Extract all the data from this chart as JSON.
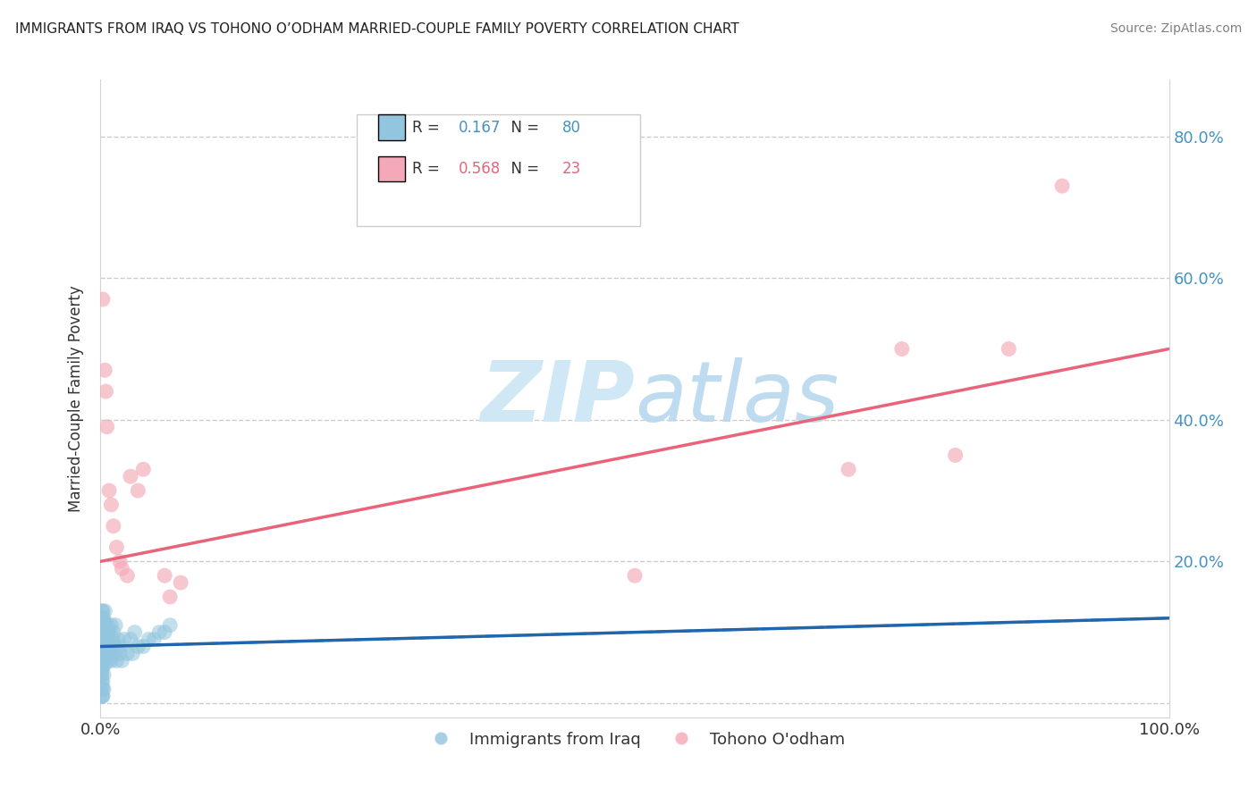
{
  "title": "IMMIGRANTS FROM IRAQ VS TOHONO O’ODHAM MARRIED-COUPLE FAMILY POVERTY CORRELATION CHART",
  "source": "Source: ZipAtlas.com",
  "ylabel": "Married-Couple Family Poverty",
  "xlim": [
    0.0,
    1.0
  ],
  "ylim": [
    -0.02,
    0.88
  ],
  "legend_R1": "0.167",
  "legend_N1": "80",
  "legend_R2": "0.568",
  "legend_N2": "23",
  "blue_scatter_color": "#92c5de",
  "pink_scatter_color": "#f4a9b8",
  "blue_line_color": "#2166ac",
  "pink_line_color": "#e8647a",
  "right_axis_color": "#4393c3",
  "watermark_color": "#d0e8f5",
  "iraq_x": [
    0.002,
    0.001,
    0.001,
    0.002,
    0.003,
    0.001,
    0.002,
    0.001,
    0.002,
    0.001,
    0.001,
    0.002,
    0.001,
    0.003,
    0.002,
    0.001,
    0.002,
    0.003,
    0.001,
    0.002,
    0.001,
    0.002,
    0.003,
    0.001,
    0.002,
    0.001,
    0.003,
    0.002,
    0.001,
    0.004,
    0.003,
    0.002,
    0.001,
    0.004,
    0.003,
    0.002,
    0.005,
    0.004,
    0.003,
    0.002,
    0.006,
    0.005,
    0.004,
    0.003,
    0.007,
    0.006,
    0.005,
    0.004,
    0.008,
    0.007,
    0.006,
    0.009,
    0.008,
    0.007,
    0.01,
    0.009,
    0.008,
    0.012,
    0.011,
    0.01,
    0.015,
    0.013,
    0.012,
    0.018,
    0.016,
    0.014,
    0.02,
    0.018,
    0.025,
    0.022,
    0.03,
    0.028,
    0.035,
    0.032,
    0.04,
    0.045,
    0.05,
    0.055,
    0.06,
    0.065
  ],
  "iraq_y": [
    0.01,
    0.01,
    0.02,
    0.01,
    0.02,
    0.03,
    0.02,
    0.04,
    0.03,
    0.05,
    0.04,
    0.05,
    0.06,
    0.04,
    0.06,
    0.07,
    0.05,
    0.06,
    0.08,
    0.07,
    0.09,
    0.08,
    0.07,
    0.1,
    0.09,
    0.11,
    0.08,
    0.1,
    0.12,
    0.07,
    0.09,
    0.11,
    0.13,
    0.08,
    0.1,
    0.12,
    0.07,
    0.09,
    0.11,
    0.13,
    0.06,
    0.08,
    0.1,
    0.12,
    0.07,
    0.09,
    0.11,
    0.13,
    0.06,
    0.08,
    0.1,
    0.07,
    0.09,
    0.11,
    0.06,
    0.08,
    0.1,
    0.07,
    0.09,
    0.11,
    0.06,
    0.08,
    0.1,
    0.07,
    0.09,
    0.11,
    0.06,
    0.08,
    0.07,
    0.09,
    0.07,
    0.09,
    0.08,
    0.1,
    0.08,
    0.09,
    0.09,
    0.1,
    0.1,
    0.11
  ],
  "tohono_x": [
    0.002,
    0.004,
    0.005,
    0.006,
    0.008,
    0.01,
    0.012,
    0.015,
    0.018,
    0.02,
    0.025,
    0.028,
    0.035,
    0.04,
    0.06,
    0.065,
    0.075,
    0.5,
    0.7,
    0.75,
    0.8,
    0.85,
    0.9
  ],
  "tohono_y": [
    0.57,
    0.47,
    0.44,
    0.39,
    0.3,
    0.28,
    0.25,
    0.22,
    0.2,
    0.19,
    0.18,
    0.32,
    0.3,
    0.33,
    0.18,
    0.15,
    0.17,
    0.18,
    0.33,
    0.5,
    0.35,
    0.5,
    0.73
  ],
  "iraq_trend_start_y": 0.08,
  "iraq_trend_end_y": 0.12,
  "tohono_trend_start_y": 0.2,
  "tohono_trend_end_y": 0.5
}
